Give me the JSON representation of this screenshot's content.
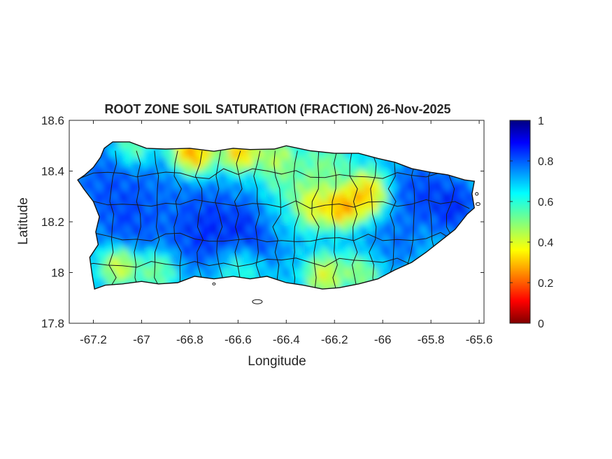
{
  "figure": {
    "title": "ROOT ZONE SOIL SATURATION (FRACTION) 26-Nov-2025",
    "xlabel": "Longitude",
    "ylabel": "Latitude"
  },
  "map": {
    "region": "Puerto Rico",
    "variable": "root zone soil saturation",
    "units": "fraction",
    "date": "26-Nov-2025",
    "x_range": [
      -67.3,
      -65.58
    ],
    "y_range": [
      17.8,
      18.6
    ],
    "x_ticks": [
      -67.2,
      -67,
      -66.8,
      -66.6,
      -66.4,
      -66.2,
      -66,
      -65.8,
      -65.6
    ],
    "y_ticks": [
      17.8,
      18,
      18.2,
      18.4,
      18.6
    ],
    "x_tick_labels": [
      "-67.2",
      "-67",
      "-66.8",
      "-66.6",
      "-66.4",
      "-66.2",
      "-66",
      "-65.8",
      "-65.6"
    ],
    "y_tick_labels": [
      "17.8",
      "18",
      "18.2",
      "18.4",
      "18.6"
    ],
    "coastline_color": "#000000",
    "municipal_boundaries": true
  },
  "colorbar": {
    "colormap": "jet",
    "range": [
      0,
      1
    ],
    "ticks": [
      0,
      0.2,
      0.4,
      0.6,
      0.8,
      1
    ],
    "tick_labels": [
      "0",
      "0.2",
      "0.4",
      "0.6",
      "0.8",
      "1"
    ],
    "placement": "right"
  }
}
